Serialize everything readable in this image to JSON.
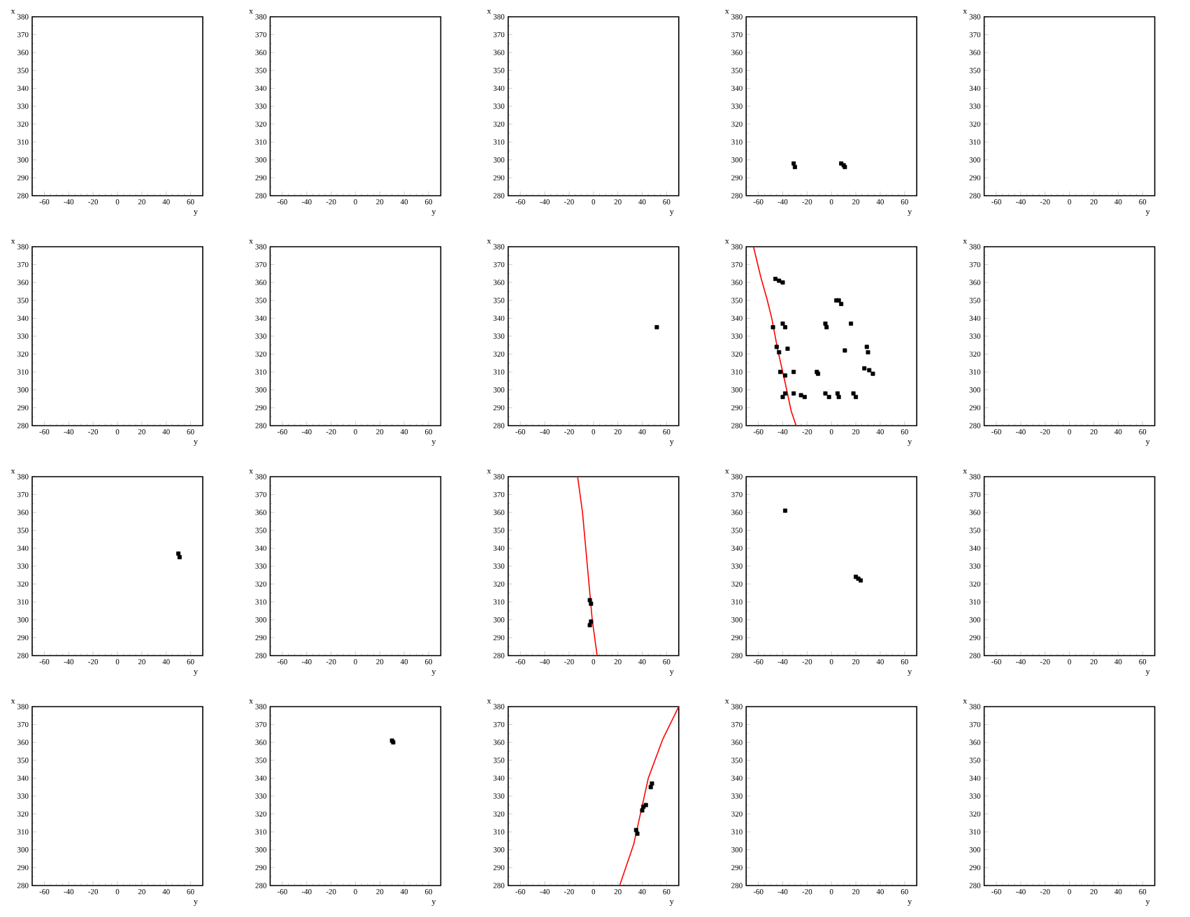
{
  "chart_data": [
    {
      "type": "scatter",
      "xlabel": "y",
      "ylabel": "x",
      "xlim": [
        -70,
        70
      ],
      "ylim": [
        280,
        380
      ],
      "xticks": [
        -60,
        -40,
        -20,
        0,
        20,
        40,
        60
      ],
      "yticks": [
        280,
        290,
        300,
        310,
        320,
        330,
        340,
        350,
        360,
        370,
        380
      ]
    },
    {
      "type": "scatter",
      "xlabel": "y",
      "ylabel": "x",
      "xlim": [
        -70,
        70
      ],
      "ylim": [
        280,
        380
      ],
      "xticks": [
        -60,
        -40,
        -20,
        0,
        20,
        40,
        60
      ],
      "yticks": [
        280,
        290,
        300,
        310,
        320,
        330,
        340,
        350,
        360,
        370,
        380
      ]
    },
    {
      "type": "scatter",
      "xlabel": "y",
      "ylabel": "x",
      "xlim": [
        -70,
        70
      ],
      "ylim": [
        280,
        380
      ],
      "xticks": [
        -60,
        -40,
        -20,
        0,
        20,
        40,
        60
      ],
      "yticks": [
        280,
        290,
        300,
        310,
        320,
        330,
        340,
        350,
        360,
        370,
        380
      ]
    },
    {
      "type": "scatter",
      "xlabel": "y",
      "ylabel": "x",
      "xlim": [
        -70,
        70
      ],
      "ylim": [
        280,
        380
      ],
      "xticks": [
        -60,
        -40,
        -20,
        0,
        20,
        40,
        60
      ],
      "yticks": [
        280,
        290,
        300,
        310,
        320,
        330,
        340,
        350,
        360,
        370,
        380
      ],
      "marker": "square",
      "series": [
        {
          "color": "#000000",
          "x": [
            -31,
            -30,
            8,
            10,
            11
          ],
          "values": [
            298,
            296,
            298,
            297,
            296
          ]
        }
      ]
    },
    {
      "type": "scatter",
      "xlabel": "y",
      "ylabel": "x",
      "xlim": [
        -70,
        70
      ],
      "ylim": [
        280,
        380
      ],
      "xticks": [
        -60,
        -40,
        -20,
        0,
        20,
        40,
        60
      ],
      "yticks": [
        280,
        290,
        300,
        310,
        320,
        330,
        340,
        350,
        360,
        370,
        380
      ]
    },
    {
      "type": "scatter",
      "xlabel": "y",
      "ylabel": "x",
      "xlim": [
        -70,
        70
      ],
      "ylim": [
        280,
        380
      ],
      "xticks": [
        -60,
        -40,
        -20,
        0,
        20,
        40,
        60
      ],
      "yticks": [
        280,
        290,
        300,
        310,
        320,
        330,
        340,
        350,
        360,
        370,
        380
      ]
    },
    {
      "type": "scatter",
      "xlabel": "y",
      "ylabel": "x",
      "xlim": [
        -70,
        70
      ],
      "ylim": [
        280,
        380
      ],
      "xticks": [
        -60,
        -40,
        -20,
        0,
        20,
        40,
        60
      ],
      "yticks": [
        280,
        290,
        300,
        310,
        320,
        330,
        340,
        350,
        360,
        370,
        380
      ]
    },
    {
      "type": "scatter",
      "xlabel": "y",
      "ylabel": "x",
      "xlim": [
        -70,
        70
      ],
      "ylim": [
        280,
        380
      ],
      "xticks": [
        -60,
        -40,
        -20,
        0,
        20,
        40,
        60
      ],
      "yticks": [
        280,
        290,
        300,
        310,
        320,
        330,
        340,
        350,
        360,
        370,
        380
      ],
      "marker": "square",
      "series": [
        {
          "color": "#000000",
          "x": [
            52
          ],
          "values": [
            335
          ]
        }
      ]
    },
    {
      "type": "scatter",
      "xlabel": "y",
      "ylabel": "x",
      "xlim": [
        -70,
        70
      ],
      "ylim": [
        280,
        380
      ],
      "xticks": [
        -60,
        -40,
        -20,
        0,
        20,
        40,
        60
      ],
      "yticks": [
        280,
        290,
        300,
        310,
        320,
        330,
        340,
        350,
        360,
        370,
        380
      ],
      "marker": "square",
      "series": [
        {
          "color": "#000000",
          "x": [
            -46,
            -43,
            -40,
            -48,
            -40,
            -38,
            -45,
            -43,
            -36,
            -42,
            -38,
            -31,
            -38,
            -40,
            -31,
            -25,
            -22,
            -12,
            -11,
            -5,
            -4,
            -5,
            -2,
            4,
            6,
            8,
            5,
            6,
            16,
            11,
            18,
            20,
            29,
            30,
            27,
            31,
            34
          ],
          "values": [
            362,
            361,
            360,
            335,
            337,
            335,
            324,
            321,
            323,
            310,
            308,
            310,
            298,
            296,
            298,
            297,
            296,
            310,
            309,
            337,
            335,
            298,
            296,
            350,
            350,
            348,
            298,
            296,
            337,
            322,
            298,
            296,
            324,
            321,
            312,
            311,
            309
          ]
        },
        {
          "type": "line",
          "color": "#ff0000",
          "marker": "none",
          "x": [
            -64,
            -58,
            -53,
            -49,
            -44,
            -38,
            -33,
            -29
          ],
          "values": [
            380,
            363,
            351,
            340,
            322,
            304,
            288,
            280
          ]
        }
      ]
    },
    {
      "type": "scatter",
      "xlabel": "y",
      "ylabel": "x",
      "xlim": [
        -70,
        70
      ],
      "ylim": [
        280,
        380
      ],
      "xticks": [
        -60,
        -40,
        -20,
        0,
        20,
        40,
        60
      ],
      "yticks": [
        280,
        290,
        300,
        310,
        320,
        330,
        340,
        350,
        360,
        370,
        380
      ]
    },
    {
      "type": "scatter",
      "xlabel": "y",
      "ylabel": "x",
      "xlim": [
        -70,
        70
      ],
      "ylim": [
        280,
        380
      ],
      "xticks": [
        -60,
        -40,
        -20,
        0,
        20,
        40,
        60
      ],
      "yticks": [
        280,
        290,
        300,
        310,
        320,
        330,
        340,
        350,
        360,
        370,
        380
      ],
      "marker": "square",
      "series": [
        {
          "color": "#000000",
          "x": [
            50,
            51
          ],
          "values": [
            337,
            335
          ]
        }
      ]
    },
    {
      "type": "scatter",
      "xlabel": "y",
      "ylabel": "x",
      "xlim": [
        -70,
        70
      ],
      "ylim": [
        280,
        380
      ],
      "xticks": [
        -60,
        -40,
        -20,
        0,
        20,
        40,
        60
      ],
      "yticks": [
        280,
        290,
        300,
        310,
        320,
        330,
        340,
        350,
        360,
        370,
        380
      ]
    },
    {
      "type": "scatter",
      "xlabel": "y",
      "ylabel": "x",
      "xlim": [
        -70,
        70
      ],
      "ylim": [
        280,
        380
      ],
      "xticks": [
        -60,
        -40,
        -20,
        0,
        20,
        40,
        60
      ],
      "yticks": [
        280,
        290,
        300,
        310,
        320,
        330,
        340,
        350,
        360,
        370,
        380
      ],
      "marker": "square",
      "series": [
        {
          "color": "#000000",
          "x": [
            -3,
            -2,
            -3,
            -2
          ],
          "values": [
            311,
            309,
            297,
            299
          ]
        },
        {
          "type": "line",
          "color": "#ff0000",
          "marker": "none",
          "x": [
            -13,
            -9,
            -5,
            -1,
            3
          ],
          "values": [
            380,
            360,
            330,
            300,
            280
          ]
        }
      ]
    },
    {
      "type": "scatter",
      "xlabel": "y",
      "ylabel": "x",
      "xlim": [
        -70,
        70
      ],
      "ylim": [
        280,
        380
      ],
      "xticks": [
        -60,
        -40,
        -20,
        0,
        20,
        40,
        60
      ],
      "yticks": [
        280,
        290,
        300,
        310,
        320,
        330,
        340,
        350,
        360,
        370,
        380
      ],
      "marker": "square",
      "series": [
        {
          "color": "#000000",
          "x": [
            -38,
            20,
            22,
            24
          ],
          "values": [
            361,
            324,
            323,
            322
          ]
        }
      ]
    },
    {
      "type": "scatter",
      "xlabel": "y",
      "ylabel": "x",
      "xlim": [
        -70,
        70
      ],
      "ylim": [
        280,
        380
      ],
      "xticks": [
        -60,
        -40,
        -20,
        0,
        20,
        40,
        60
      ],
      "yticks": [
        280,
        290,
        300,
        310,
        320,
        330,
        340,
        350,
        360,
        370,
        380
      ]
    },
    {
      "type": "scatter",
      "xlabel": "y",
      "ylabel": "x",
      "xlim": [
        -70,
        70
      ],
      "ylim": [
        280,
        380
      ],
      "xticks": [
        -60,
        -40,
        -20,
        0,
        20,
        40,
        60
      ],
      "yticks": [
        280,
        290,
        300,
        310,
        320,
        330,
        340,
        350,
        360,
        370,
        380
      ]
    },
    {
      "type": "scatter",
      "xlabel": "y",
      "ylabel": "x",
      "xlim": [
        -70,
        70
      ],
      "ylim": [
        280,
        380
      ],
      "xticks": [
        -60,
        -40,
        -20,
        0,
        20,
        40,
        60
      ],
      "yticks": [
        280,
        290,
        300,
        310,
        320,
        330,
        340,
        350,
        360,
        370,
        380
      ],
      "marker": "square",
      "series": [
        {
          "color": "#000000",
          "x": [
            30,
            31
          ],
          "values": [
            361,
            360
          ]
        }
      ]
    },
    {
      "type": "scatter",
      "xlabel": "y",
      "ylabel": "x",
      "xlim": [
        -70,
        70
      ],
      "ylim": [
        280,
        380
      ],
      "xticks": [
        -60,
        -40,
        -20,
        0,
        20,
        40,
        60
      ],
      "yticks": [
        280,
        290,
        300,
        310,
        320,
        330,
        340,
        350,
        360,
        370,
        380
      ],
      "marker": "square",
      "series": [
        {
          "color": "#000000",
          "x": [
            35,
            36,
            40,
            41,
            43,
            47,
            48
          ],
          "values": [
            311,
            309,
            322,
            324,
            325,
            335,
            337
          ]
        },
        {
          "type": "line",
          "color": "#ff0000",
          "marker": "none",
          "x": [
            21.5,
            33,
            45,
            57,
            70
          ],
          "values": [
            280,
            303,
            340,
            362,
            380
          ]
        }
      ]
    },
    {
      "type": "scatter",
      "xlabel": "y",
      "ylabel": "x",
      "xlim": [
        -70,
        70
      ],
      "ylim": [
        280,
        380
      ],
      "xticks": [
        -60,
        -40,
        -20,
        0,
        20,
        40,
        60
      ],
      "yticks": [
        280,
        290,
        300,
        310,
        320,
        330,
        340,
        350,
        360,
        370,
        380
      ]
    },
    {
      "type": "scatter",
      "xlabel": "y",
      "ylabel": "x",
      "xlim": [
        -70,
        70
      ],
      "ylim": [
        280,
        380
      ],
      "xticks": [
        -60,
        -40,
        -20,
        0,
        20,
        40,
        60
      ],
      "yticks": [
        280,
        290,
        300,
        310,
        320,
        330,
        340,
        350,
        360,
        370,
        380
      ]
    }
  ]
}
